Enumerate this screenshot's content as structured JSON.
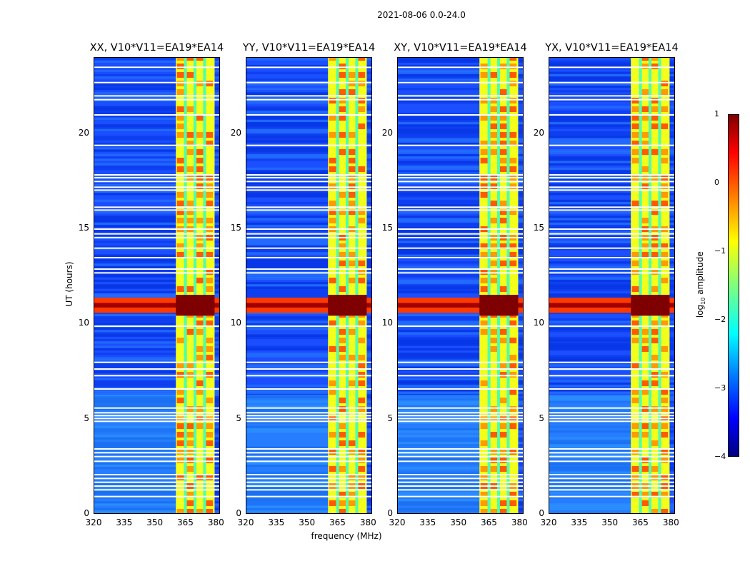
{
  "suptitle": "2021-08-06 0.0-24.0",
  "chart_data": [
    {
      "type": "heatmap",
      "title": "XX, V10*V11=EA19*EA14",
      "xlabel": "",
      "ylabel": "UT (hours)",
      "xlim": [
        320,
        382
      ],
      "ylim": [
        0,
        24
      ],
      "xticks": [
        "320",
        "335",
        "350",
        "365",
        "380"
      ],
      "yticks": [
        "0",
        "5",
        "10",
        "15",
        "20"
      ]
    },
    {
      "type": "heatmap",
      "title": "YY, V10*V11=EA19*EA14",
      "xlabel": "frequency (MHz)",
      "ylabel": "",
      "xlim": [
        320,
        382
      ],
      "ylim": [
        0,
        24
      ],
      "xticks": [
        "320",
        "335",
        "350",
        "365",
        "380"
      ],
      "yticks": [
        "0",
        "5",
        "10",
        "15",
        "20"
      ]
    },
    {
      "type": "heatmap",
      "title": "XY, V10*V11=EA19*EA14",
      "xlabel": "",
      "ylabel": "",
      "xlim": [
        320,
        382
      ],
      "ylim": [
        0,
        24
      ],
      "xticks": [
        "320",
        "335",
        "350",
        "365",
        "380"
      ],
      "yticks": [
        "0",
        "5",
        "10",
        "15",
        "20"
      ]
    },
    {
      "type": "heatmap",
      "title": "YX, V10*V11=EA19*EA14",
      "xlabel": "",
      "ylabel": "",
      "xlim": [
        320,
        382
      ],
      "ylim": [
        0,
        24
      ],
      "xticks": [
        "320",
        "335",
        "350",
        "365",
        "380"
      ],
      "yticks": [
        "0",
        "5",
        "10",
        "15",
        "20"
      ]
    }
  ],
  "colorbar": {
    "label_prefix": "log",
    "label_sub": "10",
    "label_suffix": " amplitude",
    "range": [
      -4,
      1
    ],
    "ticks": [
      "1",
      "0",
      "−1",
      "−2",
      "−3",
      "−4"
    ]
  },
  "features": {
    "rfi_band_mhz": [
      360,
      379
    ],
    "strong_rfi_ut_hours": [
      10.6,
      11.4
    ],
    "flagged_rows_ut_hours": [
      0.95,
      1.3,
      1.5,
      1.7,
      1.9,
      2.1,
      2.8,
      3.05,
      3.25,
      3.45,
      4.9,
      5.05,
      5.2,
      5.35,
      5.6,
      6.6,
      7.3,
      7.65,
      8.0,
      9.9,
      12.7,
      12.9,
      13.5,
      14.0,
      14.55,
      14.75,
      15.0,
      16.0,
      16.15,
      17.05,
      17.2,
      17.5,
      17.7,
      17.85,
      19.4,
      21.0,
      21.8,
      22.0,
      22.7,
      23.5
    ]
  }
}
